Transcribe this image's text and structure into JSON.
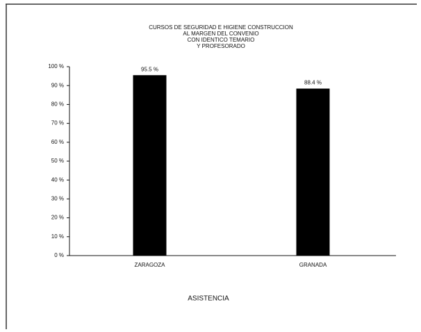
{
  "chart_data": {
    "type": "bar",
    "title": [
      "CURSOS DE SEGURIDAD E HIGIENE CONSTRUCCION",
      "AL MARGEN DEL CONVENIO",
      "CON IDENTICO TEMARIO",
      "Y PROFESORADO"
    ],
    "x_label": "ASISTENCIA",
    "categories": [
      "ZARAGOZA",
      "GRANADA"
    ],
    "values": [
      95.5,
      88.4
    ],
    "value_labels": [
      "95.5 %",
      "88.4 %"
    ],
    "color": "#000000",
    "ylim": [
      0,
      100
    ],
    "yticks": [
      {
        "value": 0,
        "label": "0 %"
      },
      {
        "value": 10,
        "label": "10 %"
      },
      {
        "value": 20,
        "label": "20 %"
      },
      {
        "value": 30,
        "label": "30 %"
      },
      {
        "value": 40,
        "label": "40 %"
      },
      {
        "value": 50,
        "label": "50 %"
      },
      {
        "value": 60,
        "label": "60 %"
      },
      {
        "value": 70,
        "label": "70 %"
      },
      {
        "value": 80,
        "label": "80 %"
      },
      {
        "value": 90,
        "label": "90 %"
      },
      {
        "value": 100,
        "label": "100 %"
      }
    ],
    "grid": false
  }
}
